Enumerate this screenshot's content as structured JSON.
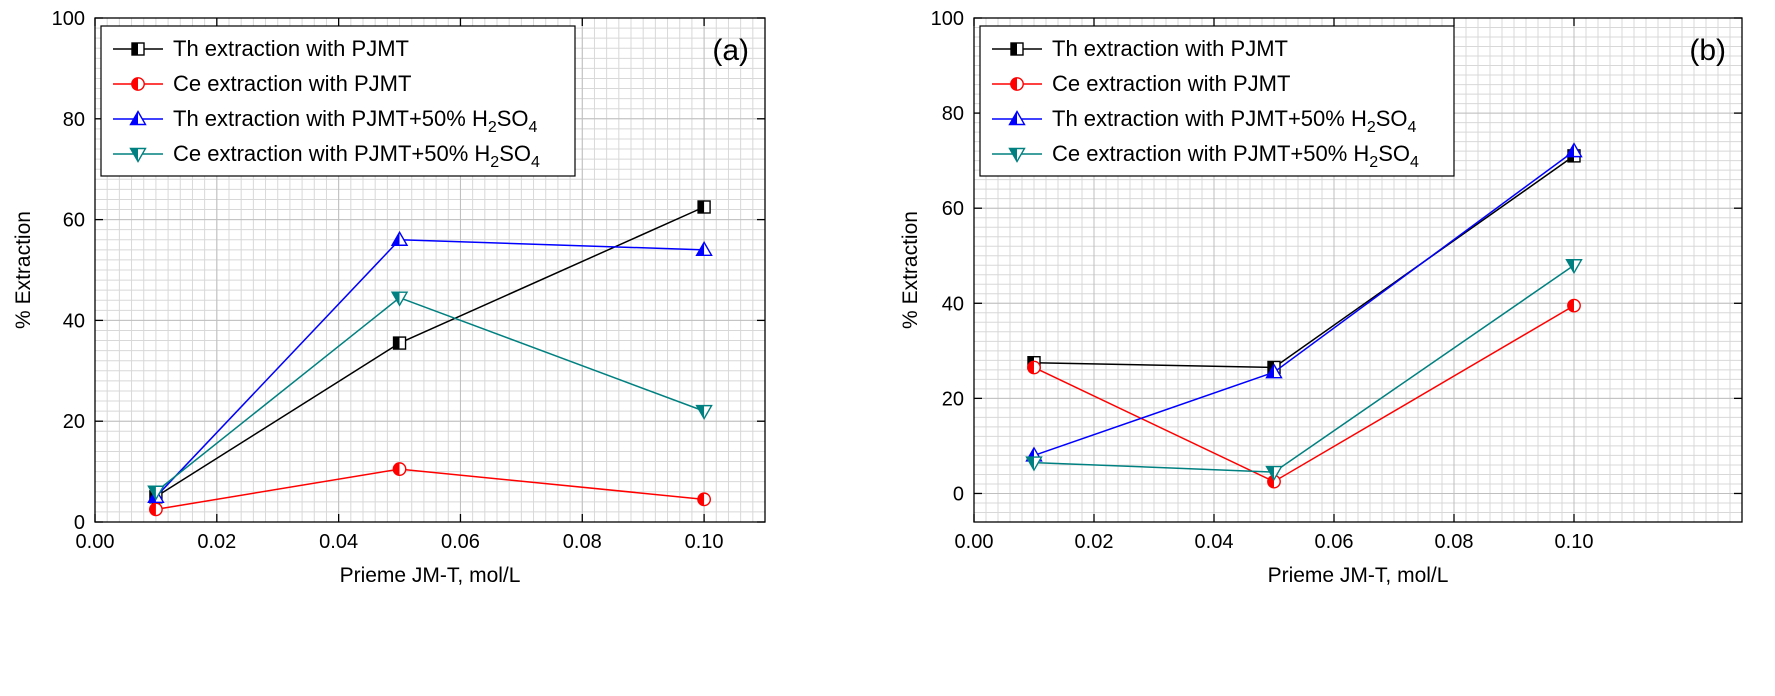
{
  "figure": {
    "background": "#ffffff",
    "panel_labels": [
      "(a)",
      "(b)"
    ]
  },
  "chart_data": [
    {
      "type": "line",
      "panel_label": "(a)",
      "title": "",
      "xlabel": "Prieme JM-T, mol/L",
      "ylabel": "% Extraction",
      "xlim": [
        0,
        0.11
      ],
      "ylim": [
        0,
        100
      ],
      "x_major_ticks": [
        0,
        0.02,
        0.04,
        0.06,
        0.08,
        0.1
      ],
      "x_tick_labels": [
        "0.00",
        "0.02",
        "0.04",
        "0.06",
        "0.08",
        "0.10"
      ],
      "y_major_ticks": [
        0,
        20,
        40,
        60,
        80,
        100
      ],
      "y_tick_labels": [
        "0",
        "20",
        "40",
        "60",
        "80",
        "100"
      ],
      "x_minor_step": 0.002,
      "y_minor_step": 2,
      "grid": "on",
      "legend_position": "top-left",
      "x": [
        0.01,
        0.05,
        0.1
      ],
      "series": [
        {
          "name": "Th extraction with PJMT",
          "label_parts": [
            {
              "t": "Th extraction with PJMT",
              "sub": false
            }
          ],
          "color": "#000000",
          "marker": "square-half",
          "values": [
            5,
            35.5,
            62.5
          ]
        },
        {
          "name": "Ce extraction with PJMT",
          "label_parts": [
            {
              "t": "Ce extraction with PJMT",
              "sub": false
            }
          ],
          "color": "#ff0000",
          "marker": "circle-half",
          "values": [
            2.5,
            10.5,
            4.5
          ]
        },
        {
          "name": "Th extraction with PJMT+50% H2SO4",
          "label_parts": [
            {
              "t": "Th extraction with PJMT+50% H",
              "sub": false
            },
            {
              "t": "2",
              "sub": true
            },
            {
              "t": "SO",
              "sub": false
            },
            {
              "t": "4",
              "sub": true
            }
          ],
          "color": "#0000ff",
          "marker": "triangle-up-half",
          "values": [
            5,
            56,
            54
          ]
        },
        {
          "name": "Ce extraction with PJMT+50% H2SO4",
          "label_parts": [
            {
              "t": "Ce extraction with PJMT+50% H",
              "sub": false
            },
            {
              "t": "2",
              "sub": true
            },
            {
              "t": "SO",
              "sub": false
            },
            {
              "t": "4",
              "sub": true
            }
          ],
          "color": "#008080",
          "marker": "triangle-down-half",
          "values": [
            6,
            44.5,
            22
          ]
        }
      ]
    },
    {
      "type": "line",
      "panel_label": "(b)",
      "title": "",
      "xlabel": "Prieme JM-T, mol/L",
      "ylabel": "% Extraction",
      "xlim": [
        0,
        0.128
      ],
      "ylim": [
        -6,
        100
      ],
      "x_major_ticks": [
        0,
        0.02,
        0.04,
        0.06,
        0.08,
        0.1
      ],
      "x_tick_labels": [
        "0.00",
        "0.02",
        "0.04",
        "0.06",
        "0.08",
        "0.10"
      ],
      "y_major_ticks": [
        0,
        20,
        40,
        60,
        80,
        100
      ],
      "y_tick_labels": [
        "0",
        "20",
        "40",
        "60",
        "80",
        "100"
      ],
      "x_minor_step": 0.002,
      "y_minor_step": 2,
      "grid": "on",
      "legend_position": "top-left",
      "x": [
        0.01,
        0.05,
        0.1
      ],
      "series": [
        {
          "name": "Th extraction with PJMT",
          "label_parts": [
            {
              "t": "Th extraction with PJMT",
              "sub": false
            }
          ],
          "color": "#000000",
          "marker": "square-half",
          "values": [
            27.5,
            26.5,
            71
          ]
        },
        {
          "name": "Ce extraction with PJMT",
          "label_parts": [
            {
              "t": "Ce extraction with PJMT",
              "sub": false
            }
          ],
          "color": "#ff0000",
          "marker": "circle-half",
          "values": [
            26.5,
            2.5,
            39.5
          ]
        },
        {
          "name": "Th extraction with PJMT+50% H2SO4",
          "label_parts": [
            {
              "t": "Th extraction with PJMT+50% H",
              "sub": false
            },
            {
              "t": "2",
              "sub": true
            },
            {
              "t": "SO",
              "sub": false
            },
            {
              "t": "4",
              "sub": true
            }
          ],
          "color": "#0000ff",
          "marker": "triangle-up-half",
          "values": [
            8,
            25.5,
            72
          ]
        },
        {
          "name": "Ce extraction with PJMT+50% H2SO4",
          "label_parts": [
            {
              "t": "Ce extraction with PJMT+50% H",
              "sub": false
            },
            {
              "t": "2",
              "sub": true
            },
            {
              "t": "SO",
              "sub": false
            },
            {
              "t": "4",
              "sub": true
            }
          ],
          "color": "#008080",
          "marker": "triangle-down-half",
          "values": [
            6.5,
            4.5,
            48
          ]
        }
      ]
    }
  ]
}
